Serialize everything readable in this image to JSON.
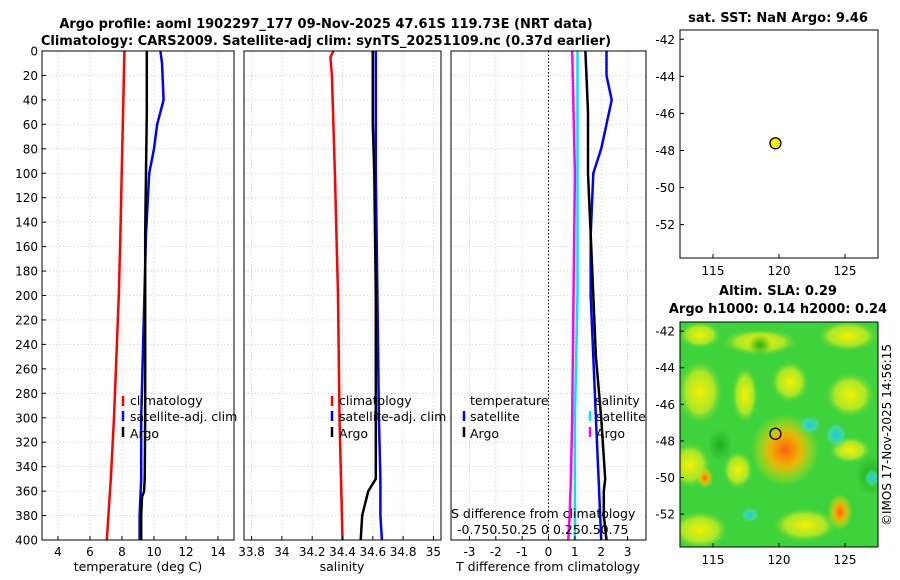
{
  "title_line1": "Argo profile: aoml 1902297_177 09-Nov-2025 47.61S 119.73E (NRT data)",
  "title_line2": "Climatology: CARS2009. Satellite-adj clim: synTS_20251109.nc (0.37d earlier)",
  "colors": {
    "climatology": "#ff0000",
    "satellite": "#0000ff",
    "argo": "#000000",
    "t_sat_diff": "#00e5ee",
    "s_sat_diff": "#ff00ff",
    "marker": "#f5f000"
  },
  "legend": {
    "climatology": "climatology",
    "satellite_adj": "satellite-adj. clim",
    "argo": "Argo",
    "temperature": "temperature",
    "salinity": "salinity",
    "satellite": "satellite"
  },
  "diff_text": {
    "s_label": "S difference from climatology",
    "s_ticks": "-0.750.50.25  0  0.250.50.75"
  },
  "watermark": "©IMOS 17-Nov-2025 14:56:15",
  "chart_data": [
    {
      "type": "line",
      "name": "temperature",
      "xlabel": "temperature (deg C)",
      "xlim": [
        3,
        15
      ],
      "xticks": [
        "4",
        "6",
        "8",
        "10",
        "12",
        "14"
      ],
      "xtick_values": [
        4,
        6,
        8,
        10,
        12,
        14
      ],
      "ylim": [
        0,
        400
      ],
      "yticks": [
        "0",
        "20",
        "40",
        "60",
        "80",
        "100",
        "120",
        "140",
        "160",
        "180",
        "200",
        "220",
        "240",
        "260",
        "280",
        "300",
        "320",
        "340",
        "360",
        "380",
        "400"
      ],
      "series": [
        {
          "name": "climatology",
          "color": "#ff0000",
          "depth": [
            0,
            20,
            60,
            100,
            150,
            200,
            250,
            300,
            350,
            400
          ],
          "values": [
            8.15,
            8.12,
            8.05,
            7.98,
            7.9,
            7.8,
            7.65,
            7.5,
            7.3,
            7.05
          ]
        },
        {
          "name": "satellite-adj. clim",
          "color": "#0000ff",
          "depth": [
            0,
            10,
            40,
            60,
            80,
            100,
            150,
            200,
            250,
            300,
            350,
            380,
            400
          ],
          "values": [
            10.4,
            10.5,
            10.6,
            10.2,
            10.0,
            9.7,
            9.5,
            9.4,
            9.3,
            9.2,
            9.2,
            9.1,
            9.1
          ]
        },
        {
          "name": "Argo",
          "color": "#000000",
          "depth": [
            0,
            50,
            100,
            150,
            200,
            250,
            300,
            350,
            360,
            365,
            380,
            400
          ],
          "values": [
            9.55,
            9.55,
            9.5,
            9.45,
            9.45,
            9.45,
            9.45,
            9.42,
            9.38,
            9.25,
            9.2,
            9.2
          ]
        }
      ]
    },
    {
      "type": "line",
      "name": "salinity",
      "xlabel": "salinity",
      "xlim": [
        33.75,
        35.05
      ],
      "xticks": [
        "33.8",
        "34",
        "34.2",
        "34.4",
        "34.6",
        "34.8",
        "35"
      ],
      "xtick_values": [
        33.8,
        34,
        34.2,
        34.4,
        34.6,
        34.8,
        35
      ],
      "ylim": [
        0,
        400
      ],
      "series": [
        {
          "name": "climatology",
          "color": "#ff0000",
          "depth": [
            0,
            5,
            20,
            100,
            200,
            300,
            400
          ],
          "values": [
            34.34,
            34.32,
            34.33,
            34.35,
            34.37,
            34.38,
            34.4
          ]
        },
        {
          "name": "satellite-adj. clim",
          "color": "#0000ff",
          "depth": [
            0,
            60,
            100,
            200,
            300,
            350,
            380,
            400
          ],
          "values": [
            34.62,
            34.62,
            34.62,
            34.63,
            34.64,
            34.65,
            34.65,
            34.66
          ]
        },
        {
          "name": "Argo",
          "color": "#000000",
          "depth": [
            0,
            60,
            100,
            200,
            300,
            350,
            360,
            370,
            380,
            400
          ],
          "values": [
            34.6,
            34.6,
            34.61,
            34.62,
            34.62,
            34.62,
            34.57,
            34.55,
            34.53,
            34.52
          ]
        }
      ]
    },
    {
      "type": "line",
      "name": "difference",
      "xlabel": "T difference from climatology",
      "xlim": [
        -3.7,
        3.7
      ],
      "xticks": [
        "-3",
        "-2",
        "-1",
        "0",
        "1",
        "2",
        "3"
      ],
      "xtick_values": [
        -3,
        -2,
        -1,
        0,
        1,
        2,
        3
      ],
      "ylim": [
        0,
        400
      ],
      "series": [
        {
          "name": "T satellite",
          "color": "#0000ff",
          "depth": [
            0,
            20,
            40,
            60,
            80,
            100,
            150,
            200,
            250,
            300,
            350,
            400
          ],
          "values": [
            2.2,
            2.2,
            2.4,
            2.2,
            2.0,
            1.7,
            1.6,
            1.6,
            1.7,
            1.8,
            1.9,
            2.0
          ]
        },
        {
          "name": "T Argo",
          "color": "#000000",
          "depth": [
            0,
            50,
            100,
            150,
            200,
            250,
            300,
            350,
            360,
            380,
            400
          ],
          "values": [
            1.4,
            1.5,
            1.5,
            1.6,
            1.7,
            1.8,
            2.0,
            2.15,
            2.1,
            2.1,
            2.2
          ]
        },
        {
          "name": "S satellite",
          "color": "#00e5ee",
          "depth": [
            0,
            100,
            200,
            300,
            400
          ],
          "values": [
            1.1,
            1.1,
            1.1,
            1.0,
            1.0
          ]
        },
        {
          "name": "S Argo",
          "color": "#ff00ff",
          "depth": [
            0,
            100,
            200,
            300,
            350,
            380,
            400
          ],
          "values": [
            0.9,
            1.0,
            0.95,
            0.9,
            0.85,
            0.8,
            0.75
          ]
        }
      ]
    },
    {
      "type": "scatter",
      "name": "sst_map",
      "title": "sat. SST: NaN Argo: 9.46",
      "xlim": [
        112.5,
        127.5
      ],
      "ylim": [
        -53.8,
        -41.5
      ],
      "xticks": [
        "115",
        "120",
        "125"
      ],
      "xtick_values": [
        115,
        120,
        125
      ],
      "yticks": [
        "-42",
        "-44",
        "-46",
        "-48",
        "-50",
        "-52"
      ],
      "ytick_values": [
        -42,
        -44,
        -46,
        -48,
        -50,
        -52
      ],
      "points": [
        {
          "lon": 119.73,
          "lat": -47.61
        }
      ]
    },
    {
      "type": "heatmap",
      "name": "sla_map",
      "title_line1": "Altim. SLA: 0.29",
      "title_line2": "Argo h1000: 0.14 h2000: 0.24",
      "xlim": [
        112.5,
        127.5
      ],
      "ylim": [
        -53.8,
        -41.5
      ],
      "xticks": [
        "115",
        "120",
        "125"
      ],
      "xtick_values": [
        115,
        120,
        125
      ],
      "yticks": [
        "-42",
        "-44",
        "-46",
        "-48",
        "-50",
        "-52"
      ],
      "ytick_values": [
        -42,
        -44,
        -46,
        -48,
        -50,
        -52
      ],
      "points": [
        {
          "lon": 119.73,
          "lat": -47.61
        }
      ]
    }
  ]
}
